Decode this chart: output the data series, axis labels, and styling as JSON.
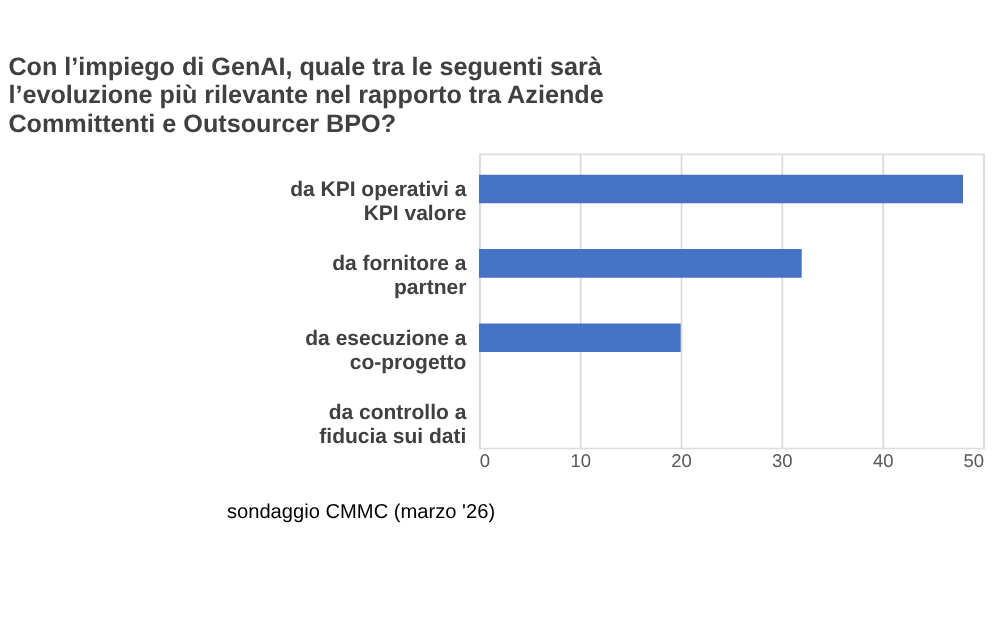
{
  "chart_data": {
    "type": "bar",
    "orientation": "horizontal",
    "title": "Con l’impiego di GenAI, quale tra le seguenti sarà l’evoluzione più rilevante nel rapporto tra Aziende Committenti e Outsourcer BPO?",
    "categories": [
      "da KPI operativi a KPI valore",
      "da fornitore a partner",
      "da esecuzione a co-progetto",
      "da controllo a fiducia sui dati"
    ],
    "values": [
      48,
      32,
      20,
      0
    ],
    "color": "#4472c4",
    "xlim": [
      0,
      50
    ],
    "xticks": [
      0,
      10,
      20,
      30,
      40,
      50
    ],
    "grid": "x",
    "annotations": [
      "sondaggio CMMC (marzo '26)"
    ]
  }
}
